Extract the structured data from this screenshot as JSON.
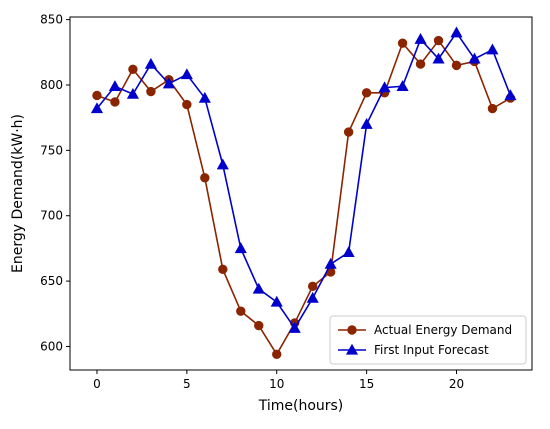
{
  "chart_data": {
    "type": "line",
    "xlabel": "Time(hours)",
    "ylabel": "Energy Demand(kW·h)",
    "xlim": [
      -1.5,
      24.2
    ],
    "ylim": [
      582,
      852
    ],
    "xticks": [
      0,
      5,
      10,
      15,
      20
    ],
    "yticks": [
      600,
      650,
      700,
      750,
      800,
      850
    ],
    "grid": false,
    "legend_position": "lower-right",
    "x": [
      0,
      1,
      2,
      3,
      4,
      5,
      6,
      7,
      8,
      9,
      10,
      11,
      12,
      13,
      14,
      15,
      16,
      17,
      18,
      19,
      20,
      21,
      22,
      23
    ],
    "series": [
      {
        "name": "Actual Energy Demand",
        "marker": "circle",
        "color": "#8b2500",
        "values": [
          792,
          787,
          812,
          795,
          804,
          785,
          729,
          659,
          627,
          616,
          594,
          618,
          646,
          657,
          764,
          794,
          794,
          832,
          816,
          834,
          815,
          818,
          782,
          790
        ]
      },
      {
        "name": "First Input Forecast",
        "marker": "triangle",
        "color": "#0000cc",
        "values": [
          782,
          799,
          793,
          816,
          801,
          808,
          790,
          739,
          675,
          644,
          634,
          614,
          637,
          663,
          672,
          770,
          798,
          799,
          835,
          820,
          840,
          820,
          827,
          792
        ]
      }
    ]
  }
}
